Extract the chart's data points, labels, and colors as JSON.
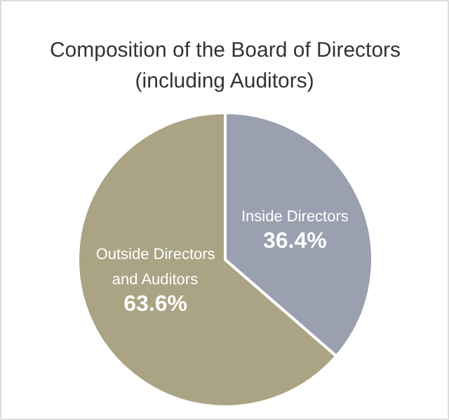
{
  "chart_data": {
    "type": "pie",
    "title": "Composition of the Board of Directors\n(including Auditors)",
    "categories": [
      "Inside Directors",
      "Outside Directors\nand Auditors"
    ],
    "values": [
      36.4,
      63.6
    ],
    "colors": [
      "#9ba0b0",
      "#aaa484"
    ],
    "value_labels": [
      "36.4%",
      "63.6%"
    ]
  }
}
